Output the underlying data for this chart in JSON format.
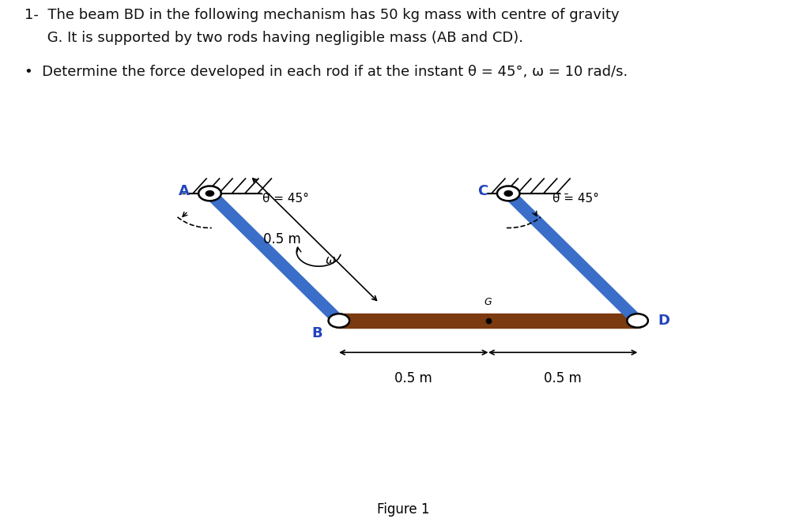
{
  "title_line1": "1-  The beam BD in the following mechanism has 50 kg mass with centre of gravity",
  "title_line2": "     G. It is supported by two rods having negligible mass (AB and CD).",
  "bullet_text": "Determine the force developed in each rod if at the instant θ = 45°, ω = 10 rad/s.",
  "figure_caption": "Figure 1",
  "rod_color_blue": "#3a6ec8",
  "beam_color": "#7B3A10",
  "text_color_black": "#111111",
  "text_color_blue": "#2244bb",
  "background": "#ffffff",
  "A": [
    0.26,
    0.635
  ],
  "B": [
    0.42,
    0.395
  ],
  "C": [
    0.63,
    0.635
  ],
  "D": [
    0.79,
    0.395
  ],
  "theta_label": "θ = 45°",
  "omega_label": "ω",
  "dim_label_BD_left": "0.5 m",
  "dim_label_BD_right": "0.5 m",
  "dim_label_AB": "0.5 m"
}
